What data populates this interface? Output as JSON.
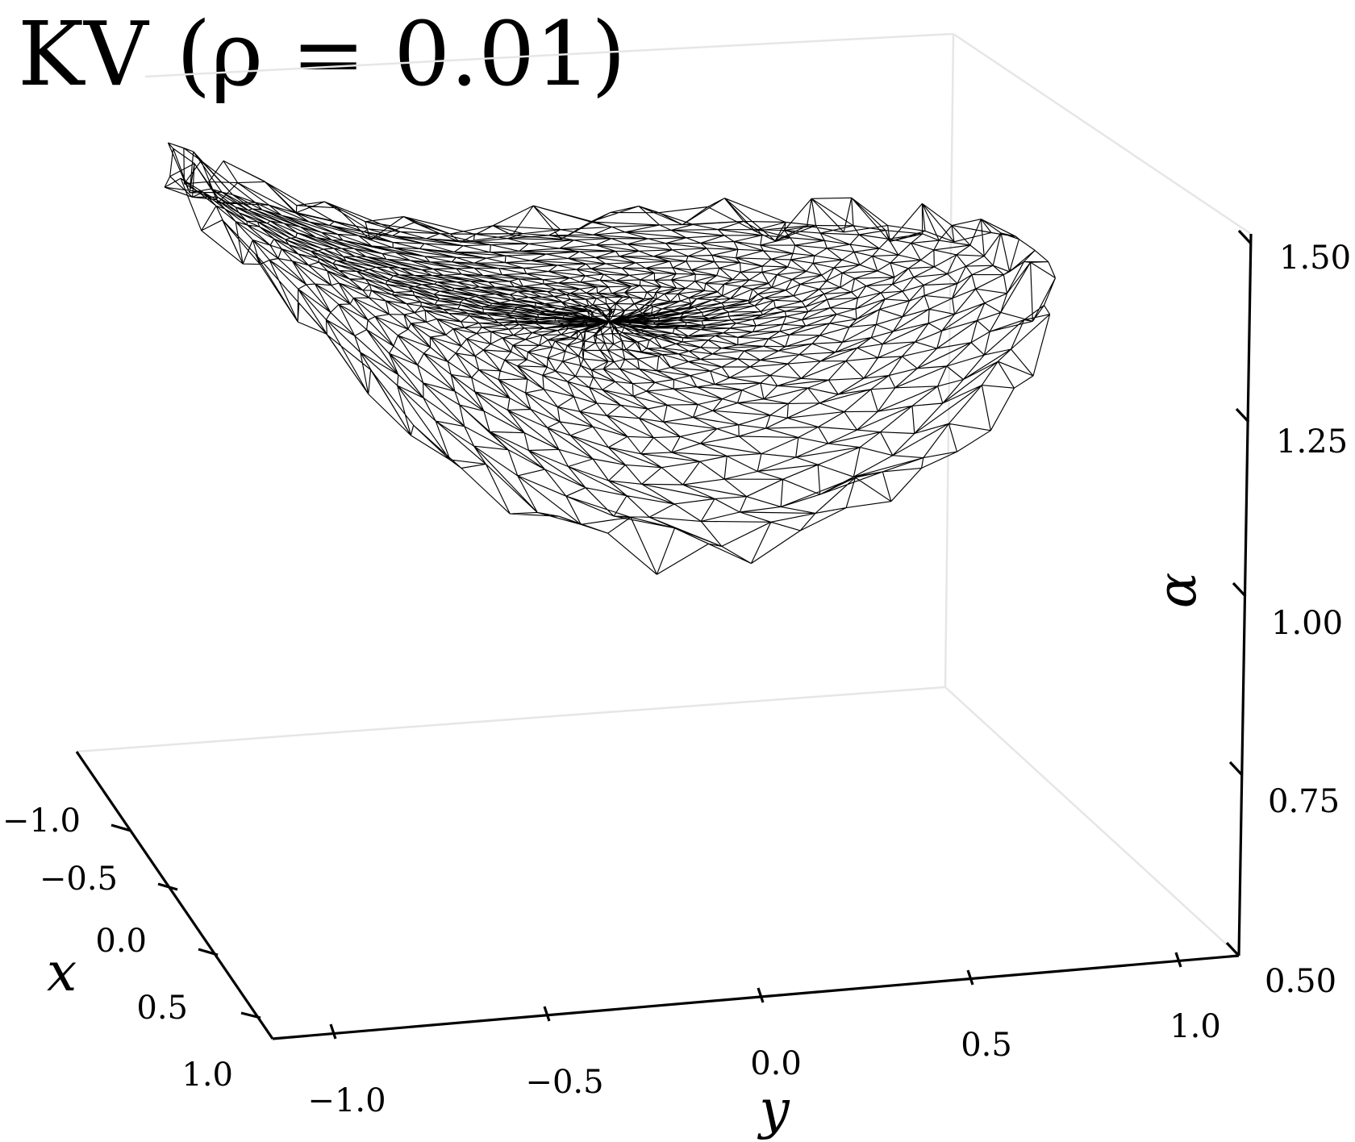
{
  "chart_data": {
    "type": "surface-wireframe",
    "title": "KV (ρ = 0.01)",
    "xlabel": "x",
    "ylabel": "y",
    "zlabel": "α",
    "x_ticks": [
      "−1.0",
      "−0.5",
      "0.0",
      "0.5",
      "1.0"
    ],
    "y_ticks": [
      "−1.0",
      "−0.5",
      "0.0",
      "0.5",
      "1.0"
    ],
    "z_ticks": [
      "0.50",
      "0.75",
      "1.00",
      "1.25",
      "1.50"
    ],
    "xlim": [
      -1.0,
      1.0
    ],
    "ylim": [
      -1.0,
      1.0
    ],
    "zlim": [
      0.5,
      1.5
    ],
    "surface": {
      "description": "saddle-shaped triangulated surface over a disc",
      "alpha_near_y_minus_1": 1.5,
      "alpha_at_center": 1.25,
      "alpha_near_y_plus_1": 1.3,
      "alpha_near_x_plus_1": 0.9
    },
    "grid": false,
    "color": "#000000"
  }
}
